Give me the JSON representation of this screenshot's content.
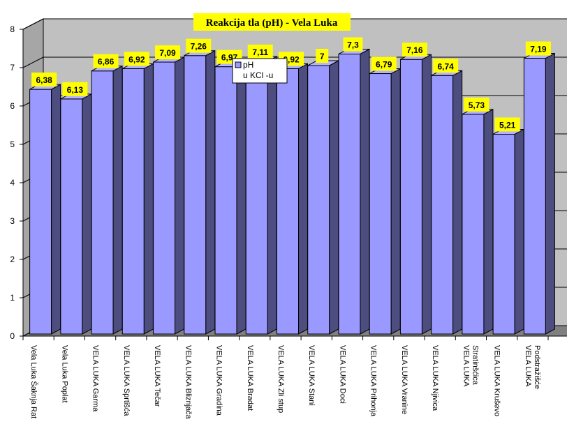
{
  "chart_data": {
    "type": "bar",
    "title": "Reakcija tla (pH)  - Vela Luka",
    "xlabel": "",
    "ylabel": "",
    "ylim": [
      0,
      8
    ],
    "yticks": [
      0,
      1,
      2,
      3,
      4,
      5,
      6,
      7,
      8
    ],
    "grid": true,
    "legend_position": "inside-upper-left",
    "categories": [
      [
        "Vela Luka Šaknja Rat"
      ],
      [
        "Vela Luka Poplat"
      ],
      [
        "VELA LUKA Garma"
      ],
      [
        "VELA LUKA Sprtišća"
      ],
      [
        "VELA LUKA Tečar"
      ],
      [
        "VELA LUKA Bliznjača"
      ],
      [
        "VELA LUKA Gradina"
      ],
      [
        "VELA LUKA Bradat"
      ],
      [
        "VELA LUKA Zli stup"
      ],
      [
        "VELA LUKA Stani"
      ],
      [
        "VELA LUKA Doci"
      ],
      [
        "VELA LUKA Prihonja"
      ],
      [
        "VELA LUKA Vranine"
      ],
      [
        "VELA LUKA Njivica"
      ],
      [
        "VELA LUKA",
        "Stratinšćica"
      ],
      [
        "VELA LUKA Kruševo"
      ],
      [
        "VELA LUKA",
        "Podstražišće"
      ]
    ],
    "series": [
      {
        "name": "pH u KCl -u",
        "legend_lines": [
          "pH",
          "u KCl -u"
        ],
        "values": [
          6.38,
          6.13,
          6.86,
          6.92,
          7.09,
          7.26,
          6.97,
          7.11,
          6.92,
          7,
          7.3,
          6.79,
          7.16,
          6.74,
          5.73,
          5.21,
          7.19
        ],
        "labels": [
          "6,38",
          "6,13",
          "6,86",
          "6,92",
          "7,09",
          "7,26",
          "6,97",
          "7,11",
          "6,92",
          "7",
          "7,3",
          "6,79",
          "7,16",
          "6,74",
          "5,73",
          "5,21",
          "7,19"
        ]
      }
    ]
  },
  "colors": {
    "bar_front": "#9999ff",
    "bar_side": "#4d4d80",
    "bar_top": "#b3b3ff",
    "back_wall": "#c0c0c0",
    "side_wall": "#a6a6a6",
    "floor": "#808080",
    "label_bg": "#ffff00",
    "title_bg": "#ffff00"
  }
}
